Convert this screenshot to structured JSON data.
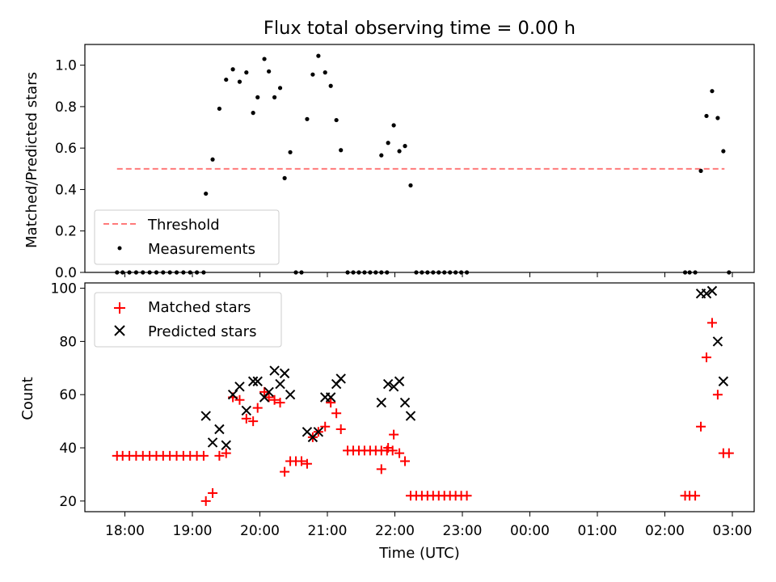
{
  "chart_data": [
    {
      "type": "scatter",
      "title": "Flux total observing time = 0.00 h",
      "xlabel": "",
      "ylabel": "Matched/Predicted stars",
      "ylim": [
        0,
        1.1
      ],
      "yticks": [
        "0.0",
        "0.2",
        "0.4",
        "0.6",
        "0.8",
        "1.0"
      ],
      "grid": false,
      "legend_position": "lower-left",
      "threshold": {
        "name": "Threshold",
        "value": 0.5,
        "x_start": "17:53",
        "x_end": "02:53",
        "color": "#ff7a7a"
      },
      "series": [
        {
          "name": "Measurements",
          "color": "#000000",
          "marker": "dot",
          "points": [
            [
              "17:53",
              0
            ],
            [
              "17:58",
              0
            ],
            [
              "18:04",
              0
            ],
            [
              "18:10",
              0
            ],
            [
              "18:16",
              0
            ],
            [
              "18:22",
              0
            ],
            [
              "18:28",
              0
            ],
            [
              "18:34",
              0
            ],
            [
              "18:40",
              0
            ],
            [
              "18:46",
              0
            ],
            [
              "18:52",
              0
            ],
            [
              "18:58",
              0
            ],
            [
              "19:04",
              0
            ],
            [
              "19:10",
              0
            ],
            [
              "19:12",
              0.38
            ],
            [
              "19:18",
              0.545
            ],
            [
              "19:24",
              0.79
            ],
            [
              "19:30",
              0.93
            ],
            [
              "19:36",
              0.98
            ],
            [
              "19:42",
              0.92
            ],
            [
              "19:48",
              0.965
            ],
            [
              "19:54",
              0.77
            ],
            [
              "19:58",
              0.845
            ],
            [
              "20:04",
              1.03
            ],
            [
              "20:08",
              0.97
            ],
            [
              "20:13",
              0.845
            ],
            [
              "20:18",
              0.89
            ],
            [
              "20:22",
              0.455
            ],
            [
              "20:27",
              0.58
            ],
            [
              "20:32",
              0
            ],
            [
              "20:37",
              0
            ],
            [
              "20:42",
              0.74
            ],
            [
              "20:47",
              0.955
            ],
            [
              "20:52",
              1.045
            ],
            [
              "20:58",
              0.965
            ],
            [
              "21:03",
              0.9
            ],
            [
              "21:08",
              0.735
            ],
            [
              "21:12",
              0.59
            ],
            [
              "21:18",
              0
            ],
            [
              "21:23",
              0
            ],
            [
              "21:28",
              0
            ],
            [
              "21:33",
              0
            ],
            [
              "21:38",
              0
            ],
            [
              "21:43",
              0
            ],
            [
              "21:48",
              0
            ],
            [
              "21:53",
              0
            ],
            [
              "21:48",
              0.565
            ],
            [
              "21:54",
              0.625
            ],
            [
              "21:59",
              0.71
            ],
            [
              "22:04",
              0.585
            ],
            [
              "22:09",
              0.61
            ],
            [
              "22:14",
              0.42
            ],
            [
              "22:19",
              0
            ],
            [
              "22:24",
              0
            ],
            [
              "22:29",
              0
            ],
            [
              "22:34",
              0
            ],
            [
              "22:39",
              0
            ],
            [
              "22:44",
              0
            ],
            [
              "22:49",
              0
            ],
            [
              "22:54",
              0
            ],
            [
              "22:59",
              0
            ],
            [
              "23:04",
              0
            ],
            [
              "02:18",
              0
            ],
            [
              "02:22",
              0
            ],
            [
              "02:27",
              0
            ],
            [
              "02:32",
              0.49
            ],
            [
              "02:37",
              0.755
            ],
            [
              "02:42",
              0.875
            ],
            [
              "02:47",
              0.745
            ],
            [
              "02:52",
              0.585
            ],
            [
              "02:57",
              0
            ]
          ]
        }
      ]
    },
    {
      "type": "scatter",
      "title": "",
      "xlabel": "Time (UTC)",
      "ylabel": "Count",
      "ylim": [
        16,
        102
      ],
      "yticks": [
        "20",
        "40",
        "60",
        "80",
        "100"
      ],
      "xticks": [
        "18:00",
        "19:00",
        "20:00",
        "21:00",
        "22:00",
        "23:00",
        "00:00",
        "01:00",
        "02:00",
        "03:00"
      ],
      "grid": false,
      "legend_position": "upper-left",
      "series": [
        {
          "name": "Matched stars",
          "color": "#ff0000",
          "marker": "plus",
          "points": [
            [
              "17:53",
              37
            ],
            [
              "17:58",
              37
            ],
            [
              "18:04",
              37
            ],
            [
              "18:10",
              37
            ],
            [
              "18:16",
              37
            ],
            [
              "18:22",
              37
            ],
            [
              "18:28",
              37
            ],
            [
              "18:34",
              37
            ],
            [
              "18:40",
              37
            ],
            [
              "18:46",
              37
            ],
            [
              "18:52",
              37
            ],
            [
              "18:58",
              37
            ],
            [
              "19:04",
              37
            ],
            [
              "19:10",
              37
            ],
            [
              "19:12",
              20
            ],
            [
              "19:18",
              23
            ],
            [
              "19:24",
              37
            ],
            [
              "19:30",
              38
            ],
            [
              "19:36",
              59
            ],
            [
              "19:42",
              58
            ],
            [
              "19:48",
              51
            ],
            [
              "19:54",
              50
            ],
            [
              "19:58",
              55
            ],
            [
              "20:04",
              61
            ],
            [
              "20:08",
              59
            ],
            [
              "20:13",
              58
            ],
            [
              "20:18",
              57
            ],
            [
              "20:22",
              31
            ],
            [
              "20:27",
              35
            ],
            [
              "20:32",
              35
            ],
            [
              "20:37",
              35
            ],
            [
              "20:42",
              34
            ],
            [
              "20:47",
              44
            ],
            [
              "20:52",
              46
            ],
            [
              "20:58",
              48
            ],
            [
              "21:03",
              57
            ],
            [
              "21:08",
              53
            ],
            [
              "21:12",
              47
            ],
            [
              "21:18",
              39
            ],
            [
              "21:23",
              39
            ],
            [
              "21:28",
              39
            ],
            [
              "21:33",
              39
            ],
            [
              "21:38",
              39
            ],
            [
              "21:43",
              39
            ],
            [
              "21:48",
              39
            ],
            [
              "21:53",
              39
            ],
            [
              "21:58",
              39
            ],
            [
              "21:48",
              32
            ],
            [
              "21:54",
              40
            ],
            [
              "21:59",
              45
            ],
            [
              "22:04",
              38
            ],
            [
              "22:09",
              35
            ],
            [
              "22:14",
              22
            ],
            [
              "22:19",
              22
            ],
            [
              "22:24",
              22
            ],
            [
              "22:29",
              22
            ],
            [
              "22:34",
              22
            ],
            [
              "22:39",
              22
            ],
            [
              "22:44",
              22
            ],
            [
              "22:49",
              22
            ],
            [
              "22:54",
              22
            ],
            [
              "22:59",
              22
            ],
            [
              "23:04",
              22
            ],
            [
              "02:18",
              22
            ],
            [
              "02:22",
              22
            ],
            [
              "02:27",
              22
            ],
            [
              "02:32",
              48
            ],
            [
              "02:37",
              74
            ],
            [
              "02:42",
              87
            ],
            [
              "02:47",
              60
            ],
            [
              "02:52",
              38
            ],
            [
              "02:57",
              38
            ]
          ]
        },
        {
          "name": "Predicted stars",
          "color": "#000000",
          "marker": "x",
          "points": [
            [
              "19:12",
              52
            ],
            [
              "19:18",
              42
            ],
            [
              "19:24",
              47
            ],
            [
              "19:30",
              41
            ],
            [
              "19:36",
              60
            ],
            [
              "19:42",
              63
            ],
            [
              "19:48",
              54
            ],
            [
              "19:54",
              65
            ],
            [
              "19:58",
              65
            ],
            [
              "20:04",
              59
            ],
            [
              "20:08",
              61
            ],
            [
              "20:13",
              69
            ],
            [
              "20:18",
              64
            ],
            [
              "20:22",
              68
            ],
            [
              "20:27",
              60
            ],
            [
              "20:42",
              46
            ],
            [
              "20:47",
              44
            ],
            [
              "20:52",
              46
            ],
            [
              "20:58",
              59
            ],
            [
              "21:03",
              59
            ],
            [
              "21:08",
              64
            ],
            [
              "21:12",
              66
            ],
            [
              "21:48",
              57
            ],
            [
              "21:54",
              64
            ],
            [
              "21:59",
              63
            ],
            [
              "22:04",
              65
            ],
            [
              "22:09",
              57
            ],
            [
              "22:14",
              52
            ],
            [
              "02:32",
              98
            ],
            [
              "02:37",
              98
            ],
            [
              "02:42",
              99
            ],
            [
              "02:47",
              80
            ],
            [
              "02:52",
              65
            ]
          ]
        }
      ]
    }
  ]
}
